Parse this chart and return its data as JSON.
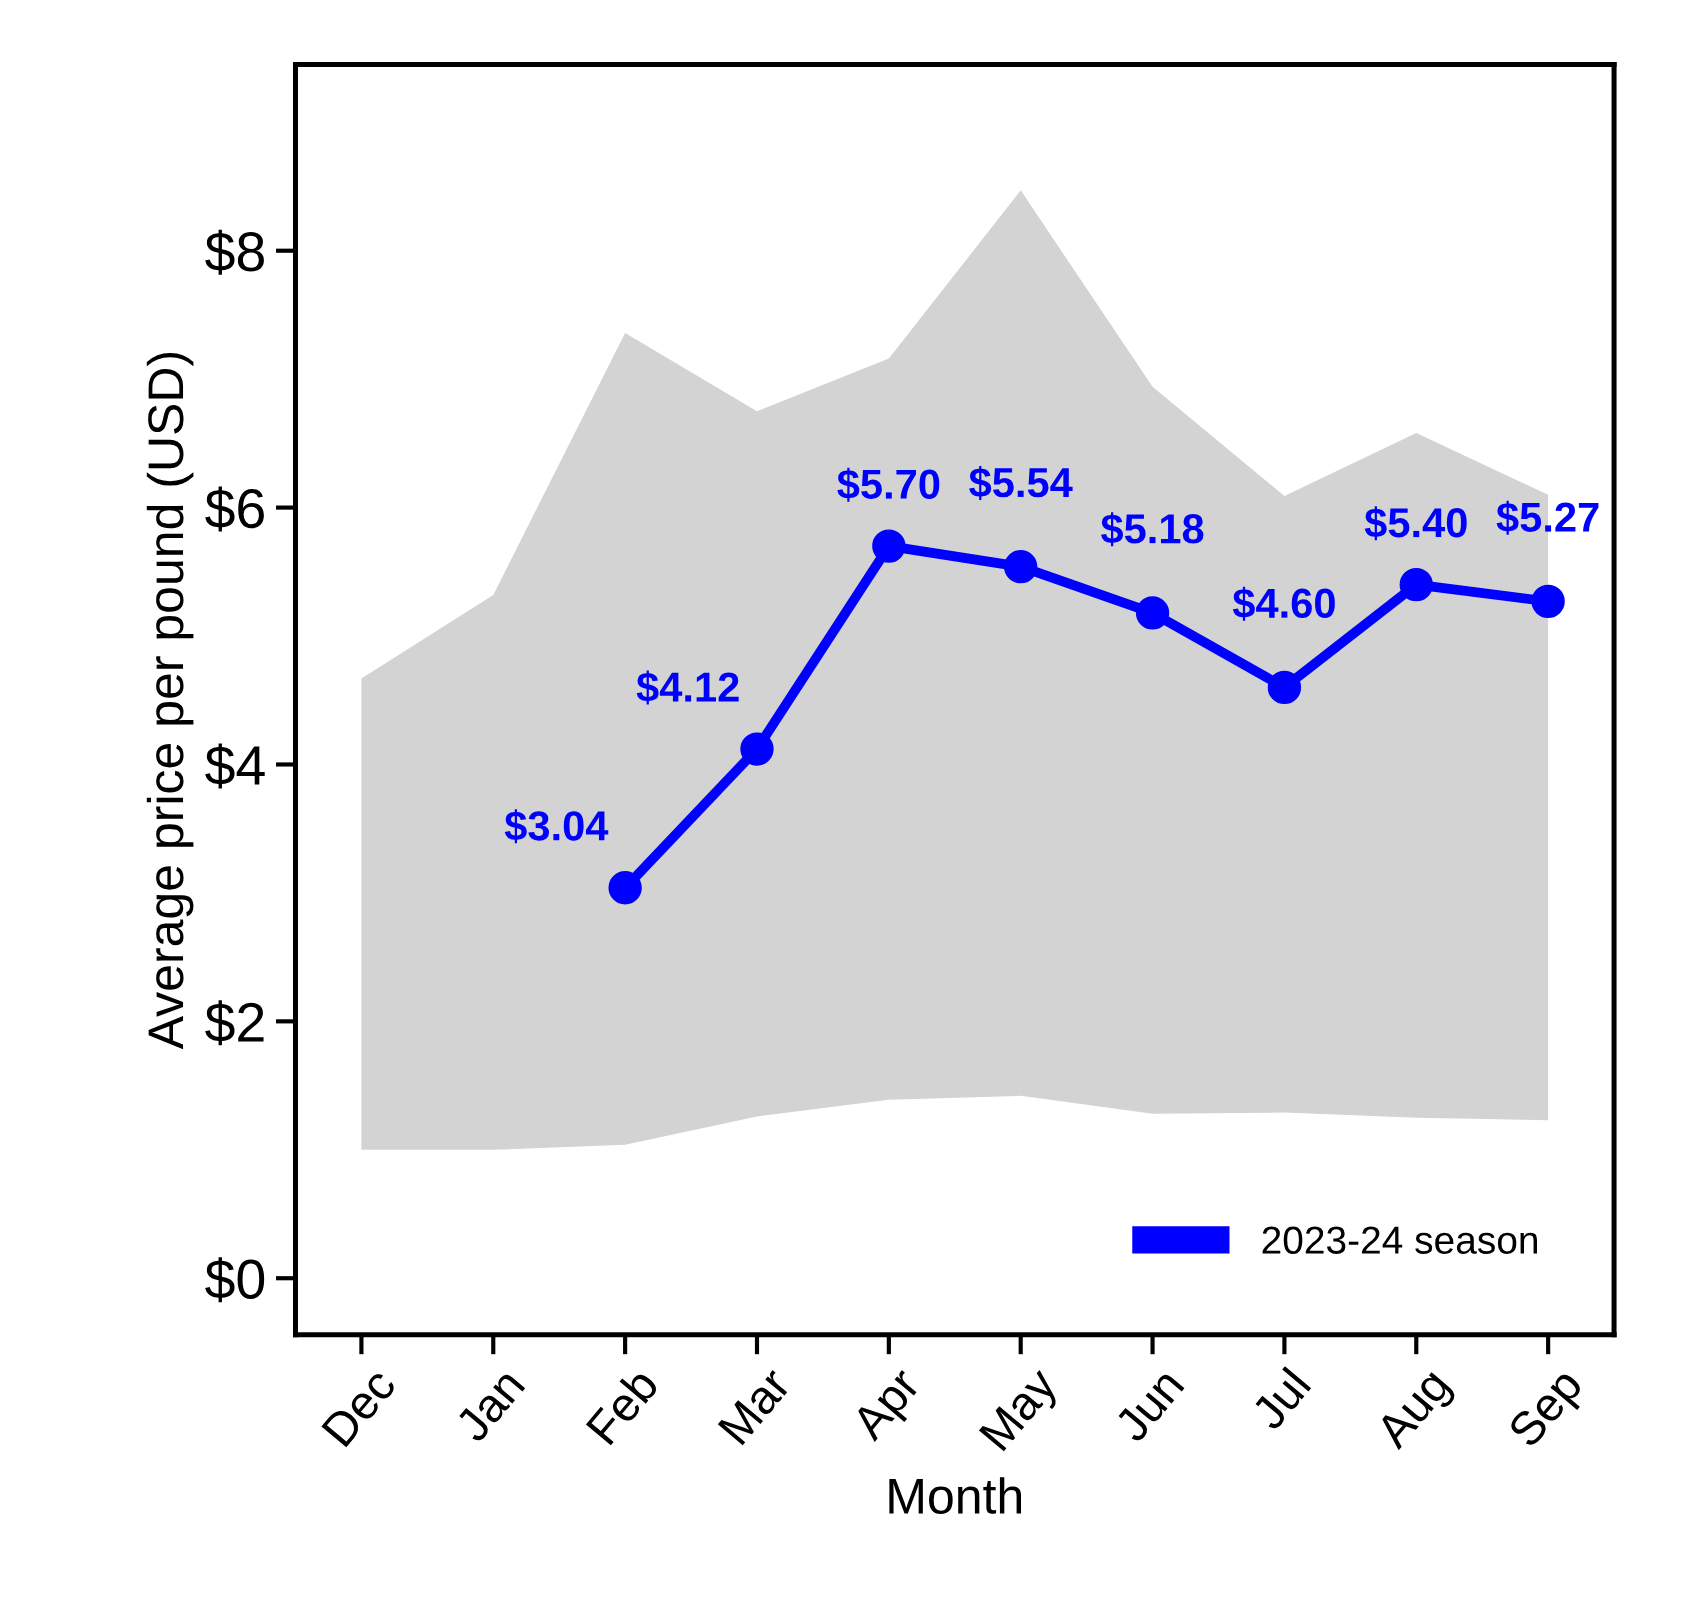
{
  "chart_data": {
    "type": "line",
    "xlabel": "Month",
    "ylabel": "Average price per pound (USD)",
    "categories": [
      "Dec",
      "Jan",
      "Feb",
      "Mar",
      "Apr",
      "May",
      "Jun",
      "Jul",
      "Aug",
      "Sep"
    ],
    "series": [
      {
        "name": "2023-24 season",
        "color": "#0000ff",
        "values": [
          null,
          null,
          3.04,
          4.12,
          5.7,
          5.54,
          5.18,
          4.6,
          5.4,
          5.27
        ],
        "value_labels": [
          null,
          null,
          "$3.04",
          "$4.12",
          "$5.70",
          "$5.54",
          "$5.18",
          "$4.60",
          "$5.40",
          "$5.27"
        ],
        "lower": [
          1.0,
          1.0,
          1.04,
          1.26,
          1.39,
          1.42,
          1.28,
          1.29,
          1.25,
          1.23
        ],
        "upper": [
          4.67,
          5.32,
          7.36,
          6.75,
          7.16,
          8.47,
          6.94,
          6.09,
          6.58,
          6.1
        ]
      }
    ],
    "ylim": [
      -0.44,
      9.45
    ],
    "yticks": [
      {
        "value": 0,
        "label": "$0"
      },
      {
        "value": 2,
        "label": "$2"
      },
      {
        "value": 4,
        "label": "$4"
      },
      {
        "value": 6,
        "label": "$6"
      },
      {
        "value": 8,
        "label": "$8"
      }
    ],
    "grid": false,
    "legend": "bottom right",
    "marker": "circle",
    "line_style": "solid"
  }
}
